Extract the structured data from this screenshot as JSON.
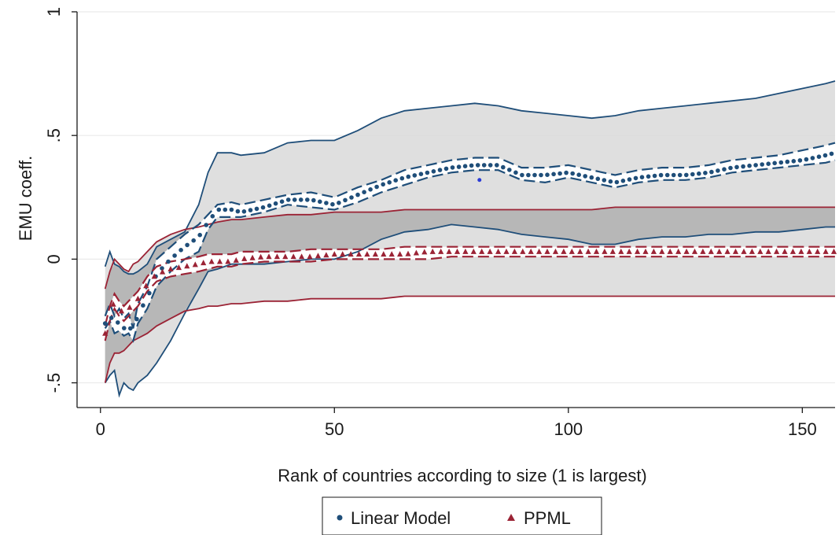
{
  "chart_data": {
    "type": "line",
    "xlabel": "Rank of countries according to size (1 is largest)",
    "ylabel": "EMU coeff.",
    "xlim": [
      -5,
      157
    ],
    "ylim": [
      -0.6,
      1.0
    ],
    "x_ticks": [
      0,
      50,
      100,
      150
    ],
    "x_tick_labels": [
      "0",
      "50",
      "100",
      "150"
    ],
    "y_ticks": [
      -0.5,
      0,
      0.5,
      1
    ],
    "y_tick_labels": [
      "-.5",
      "0",
      ".5",
      "1"
    ],
    "grid": true,
    "legend_position": "bottom",
    "colors": {
      "linear": "#1f4e79",
      "ppml": "#9b2335",
      "band_fill": "#d9d9d9",
      "band_overlap": "#b3b3b3"
    },
    "x": [
      1,
      2,
      3,
      4,
      5,
      6,
      7,
      8,
      10,
      12,
      15,
      18,
      21,
      23,
      25,
      28,
      30,
      35,
      40,
      45,
      50,
      55,
      60,
      65,
      70,
      75,
      80,
      85,
      90,
      95,
      100,
      105,
      110,
      115,
      120,
      125,
      130,
      135,
      140,
      145,
      150,
      155,
      157
    ],
    "series": [
      {
        "name": "Linear Model",
        "marker": "dot",
        "values": [
          -0.26,
          -0.22,
          -0.27,
          -0.25,
          -0.28,
          -0.26,
          -0.31,
          -0.22,
          -0.16,
          -0.06,
          0.0,
          0.05,
          0.09,
          0.15,
          0.2,
          0.2,
          0.19,
          0.21,
          0.24,
          0.24,
          0.22,
          0.26,
          0.3,
          0.33,
          0.35,
          0.37,
          0.38,
          0.38,
          0.34,
          0.34,
          0.35,
          0.33,
          0.31,
          0.33,
          0.34,
          0.34,
          0.35,
          0.37,
          0.38,
          0.39,
          0.4,
          0.42,
          0.43
        ],
        "ci_inner_lower": [
          -0.28,
          -0.25,
          -0.3,
          -0.29,
          -0.31,
          -0.3,
          -0.33,
          -0.26,
          -0.2,
          -0.11,
          -0.05,
          0.0,
          0.03,
          0.12,
          0.17,
          0.17,
          0.17,
          0.19,
          0.22,
          0.21,
          0.2,
          0.23,
          0.27,
          0.3,
          0.33,
          0.35,
          0.36,
          0.36,
          0.32,
          0.31,
          0.33,
          0.31,
          0.29,
          0.31,
          0.32,
          0.32,
          0.33,
          0.35,
          0.36,
          0.37,
          0.38,
          0.39,
          0.4
        ],
        "ci_inner_upper": [
          -0.23,
          -0.18,
          -0.23,
          -0.2,
          -0.24,
          -0.22,
          -0.28,
          -0.18,
          -0.11,
          0.0,
          0.05,
          0.1,
          0.14,
          0.18,
          0.22,
          0.23,
          0.22,
          0.24,
          0.26,
          0.27,
          0.25,
          0.29,
          0.32,
          0.36,
          0.38,
          0.4,
          0.41,
          0.41,
          0.37,
          0.37,
          0.38,
          0.36,
          0.34,
          0.36,
          0.37,
          0.37,
          0.38,
          0.4,
          0.41,
          0.42,
          0.44,
          0.46,
          0.47
        ],
        "ci_outer_lower": [
          -0.5,
          -0.47,
          -0.45,
          -0.55,
          -0.5,
          -0.52,
          -0.53,
          -0.5,
          -0.47,
          -0.42,
          -0.33,
          -0.22,
          -0.12,
          -0.05,
          -0.04,
          -0.02,
          -0.02,
          -0.02,
          -0.01,
          0.0,
          0.0,
          0.03,
          0.08,
          0.11,
          0.12,
          0.14,
          0.13,
          0.12,
          0.1,
          0.09,
          0.08,
          0.06,
          0.06,
          0.08,
          0.09,
          0.09,
          0.1,
          0.1,
          0.11,
          0.11,
          0.12,
          0.13,
          0.13
        ],
        "ci_outer_upper": [
          -0.03,
          0.03,
          -0.02,
          -0.03,
          -0.05,
          -0.06,
          -0.06,
          -0.05,
          -0.02,
          0.05,
          0.08,
          0.11,
          0.22,
          0.35,
          0.43,
          0.43,
          0.42,
          0.43,
          0.47,
          0.48,
          0.48,
          0.52,
          0.57,
          0.6,
          0.61,
          0.62,
          0.63,
          0.62,
          0.6,
          0.59,
          0.58,
          0.57,
          0.58,
          0.6,
          0.61,
          0.62,
          0.63,
          0.64,
          0.65,
          0.67,
          0.69,
          0.71,
          0.72
        ]
      },
      {
        "name": "PPML",
        "marker": "triangle",
        "values": [
          -0.3,
          -0.22,
          -0.17,
          -0.2,
          -0.22,
          -0.2,
          -0.18,
          -0.16,
          -0.1,
          -0.06,
          -0.04,
          -0.03,
          -0.02,
          -0.01,
          -0.01,
          -0.01,
          0.0,
          0.01,
          0.01,
          0.01,
          0.02,
          0.02,
          0.02,
          0.02,
          0.03,
          0.03,
          0.03,
          0.03,
          0.03,
          0.03,
          0.03,
          0.03,
          0.03,
          0.03,
          0.03,
          0.03,
          0.03,
          0.03,
          0.03,
          0.03,
          0.03,
          0.03,
          0.03
        ],
        "ci_inner_lower": [
          -0.33,
          -0.25,
          -0.2,
          -0.23,
          -0.25,
          -0.23,
          -0.21,
          -0.19,
          -0.13,
          -0.09,
          -0.07,
          -0.06,
          -0.05,
          -0.04,
          -0.03,
          -0.03,
          -0.02,
          -0.01,
          -0.01,
          -0.01,
          0.0,
          0.0,
          0.0,
          0.0,
          0.0,
          0.01,
          0.01,
          0.01,
          0.01,
          0.01,
          0.01,
          0.01,
          0.01,
          0.01,
          0.01,
          0.01,
          0.01,
          0.01,
          0.01,
          0.01,
          0.01,
          0.01,
          0.01
        ],
        "ci_inner_upper": [
          -0.27,
          -0.19,
          -0.14,
          -0.17,
          -0.19,
          -0.17,
          -0.15,
          -0.13,
          -0.07,
          -0.03,
          -0.01,
          0.0,
          0.01,
          0.02,
          0.02,
          0.02,
          0.03,
          0.03,
          0.03,
          0.04,
          0.04,
          0.04,
          0.04,
          0.05,
          0.05,
          0.05,
          0.05,
          0.05,
          0.05,
          0.05,
          0.05,
          0.05,
          0.05,
          0.05,
          0.05,
          0.05,
          0.05,
          0.05,
          0.05,
          0.05,
          0.05,
          0.05,
          0.05
        ],
        "ci_outer_lower": [
          -0.5,
          -0.42,
          -0.38,
          -0.38,
          -0.37,
          -0.35,
          -0.33,
          -0.32,
          -0.3,
          -0.27,
          -0.24,
          -0.21,
          -0.2,
          -0.19,
          -0.19,
          -0.18,
          -0.18,
          -0.17,
          -0.17,
          -0.16,
          -0.16,
          -0.16,
          -0.16,
          -0.15,
          -0.15,
          -0.15,
          -0.15,
          -0.15,
          -0.15,
          -0.15,
          -0.15,
          -0.15,
          -0.15,
          -0.15,
          -0.15,
          -0.15,
          -0.15,
          -0.15,
          -0.15,
          -0.15,
          -0.15,
          -0.15,
          -0.15
        ],
        "ci_outer_upper": [
          -0.12,
          -0.05,
          0.0,
          -0.02,
          -0.04,
          -0.05,
          -0.02,
          -0.01,
          0.03,
          0.07,
          0.1,
          0.12,
          0.13,
          0.14,
          0.15,
          0.16,
          0.16,
          0.17,
          0.18,
          0.18,
          0.19,
          0.19,
          0.19,
          0.2,
          0.2,
          0.2,
          0.2,
          0.2,
          0.2,
          0.2,
          0.2,
          0.2,
          0.21,
          0.21,
          0.21,
          0.21,
          0.21,
          0.21,
          0.21,
          0.21,
          0.21,
          0.21,
          0.21
        ]
      }
    ],
    "annotations": [
      {
        "x": 81,
        "y": 0.32,
        "marker": "dot",
        "color": "#2a3bd6"
      }
    ],
    "legend": [
      "Linear Model",
      "PPML"
    ]
  }
}
